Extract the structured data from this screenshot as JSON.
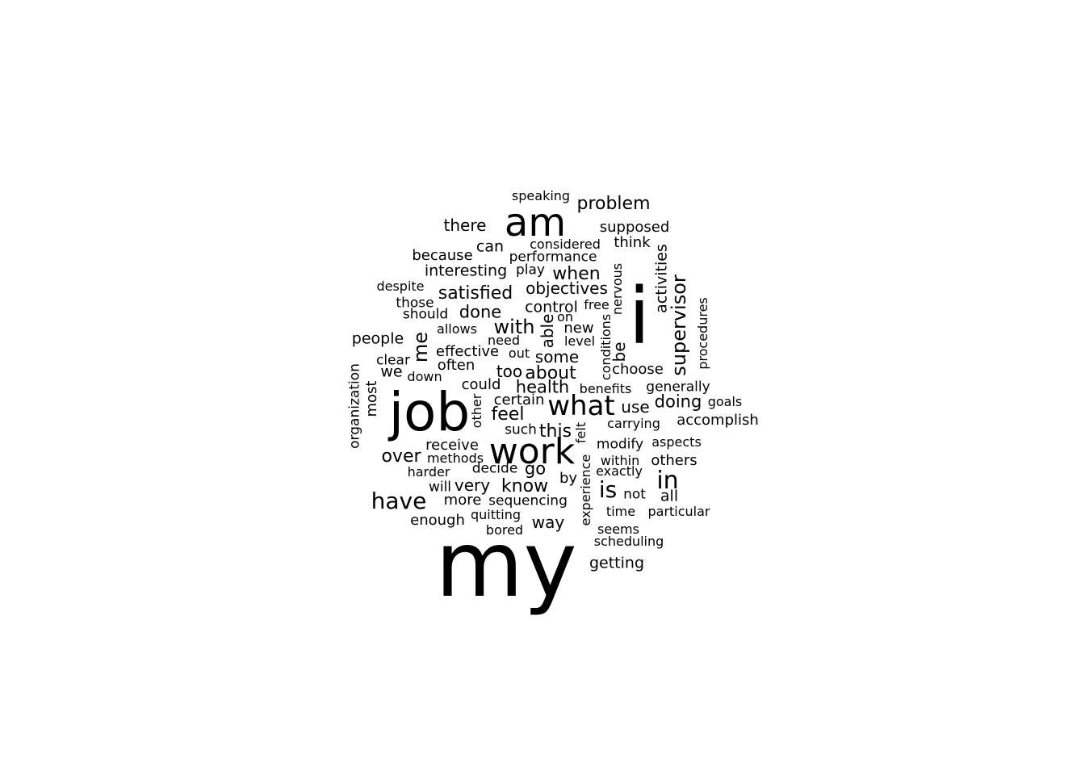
{
  "words": [
    {
      "text": "my"
    },
    {
      "text": "job"
    },
    {
      "text": "i"
    },
    {
      "text": "am"
    },
    {
      "text": "work"
    },
    {
      "text": "what"
    },
    {
      "text": "in"
    },
    {
      "text": "is"
    },
    {
      "text": "have"
    },
    {
      "text": "supervisor"
    },
    {
      "text": "me"
    },
    {
      "text": "problem"
    },
    {
      "text": "satisfied"
    },
    {
      "text": "about"
    },
    {
      "text": "with"
    },
    {
      "text": "there"
    },
    {
      "text": "know"
    },
    {
      "text": "when"
    },
    {
      "text": "objectives"
    },
    {
      "text": "interesting"
    },
    {
      "text": "done"
    },
    {
      "text": "doing"
    },
    {
      "text": "feel"
    },
    {
      "text": "this"
    },
    {
      "text": "over"
    },
    {
      "text": "health"
    },
    {
      "text": "go"
    },
    {
      "text": "control"
    },
    {
      "text": "supposed"
    },
    {
      "text": "some"
    },
    {
      "text": "people"
    },
    {
      "text": "because"
    },
    {
      "text": "activities"
    },
    {
      "text": "very"
    },
    {
      "text": "able"
    },
    {
      "text": "way"
    },
    {
      "text": "too"
    },
    {
      "text": "choose"
    },
    {
      "text": "receive"
    },
    {
      "text": "accomplish"
    },
    {
      "text": "others"
    },
    {
      "text": "use"
    },
    {
      "text": "most"
    },
    {
      "text": "can"
    },
    {
      "text": "think"
    },
    {
      "text": "effective"
    },
    {
      "text": "be"
    },
    {
      "text": "could"
    },
    {
      "text": "certain"
    },
    {
      "text": "often"
    },
    {
      "text": "enough"
    },
    {
      "text": "getting"
    },
    {
      "text": "modify"
    },
    {
      "text": "more"
    },
    {
      "text": "performance"
    },
    {
      "text": "we"
    },
    {
      "text": "sequencing"
    },
    {
      "text": "particular"
    },
    {
      "text": "organization"
    },
    {
      "text": "procedures"
    },
    {
      "text": "generally"
    },
    {
      "text": "all"
    },
    {
      "text": "within"
    },
    {
      "text": "considered"
    },
    {
      "text": "experience"
    },
    {
      "text": "nervous"
    },
    {
      "text": "conditions"
    },
    {
      "text": "speaking"
    },
    {
      "text": "quitting"
    },
    {
      "text": "despite"
    },
    {
      "text": "carrying"
    },
    {
      "text": "benefits"
    },
    {
      "text": "decide"
    },
    {
      "text": "methods"
    },
    {
      "text": "scheduling"
    },
    {
      "text": "by"
    },
    {
      "text": "new"
    },
    {
      "text": "those"
    },
    {
      "text": "play"
    },
    {
      "text": "should"
    },
    {
      "text": "clear"
    },
    {
      "text": "goals"
    },
    {
      "text": "aspects"
    },
    {
      "text": "free"
    },
    {
      "text": "allows"
    },
    {
      "text": "such"
    },
    {
      "text": "exactly"
    },
    {
      "text": "need"
    },
    {
      "text": "level"
    },
    {
      "text": "not"
    },
    {
      "text": "on"
    },
    {
      "text": "time"
    },
    {
      "text": "will"
    },
    {
      "text": "bored"
    },
    {
      "text": "harder"
    },
    {
      "text": "seems"
    },
    {
      "text": "down"
    },
    {
      "text": "felt"
    },
    {
      "text": "other"
    },
    {
      "text": "out"
    }
  ]
}
